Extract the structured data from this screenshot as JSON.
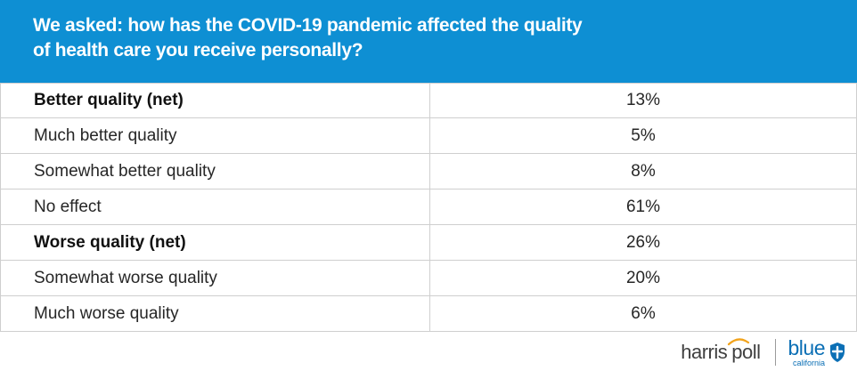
{
  "header": {
    "title": "We asked: how has the COVID-19 pandemic affected the quality of health care you receive personally?"
  },
  "chart_data": {
    "type": "table",
    "title": "We asked: how has the COVID-19 pandemic affected the quality of health care you receive personally?",
    "rows": [
      {
        "label": "Better quality (net)",
        "value": "13%",
        "net": true
      },
      {
        "label": "Much better quality",
        "value": "5%",
        "net": false
      },
      {
        "label": "Somewhat better quality",
        "value": "8%",
        "net": false
      },
      {
        "label": "No effect",
        "value": "61%",
        "net": false
      },
      {
        "label": "Worse quality (net)",
        "value": "26%",
        "net": true
      },
      {
        "label": "Somewhat worse quality",
        "value": "20%",
        "net": false
      },
      {
        "label": "Much worse quality",
        "value": "6%",
        "net": false
      }
    ]
  },
  "logos": {
    "harris_word": "harris",
    "poll_word": "poll",
    "blue_word": "blue",
    "blue_sub": "california",
    "harris_icon": "harris-arc-icon",
    "blue_icon": "blue-shield-icon"
  },
  "colors": {
    "header_bg": "#0e8fd3",
    "header_text": "#ffffff",
    "grid_line": "#cfcfcf",
    "brand_blue": "#0b6fb5",
    "harris_orange": "#f2a31b"
  }
}
